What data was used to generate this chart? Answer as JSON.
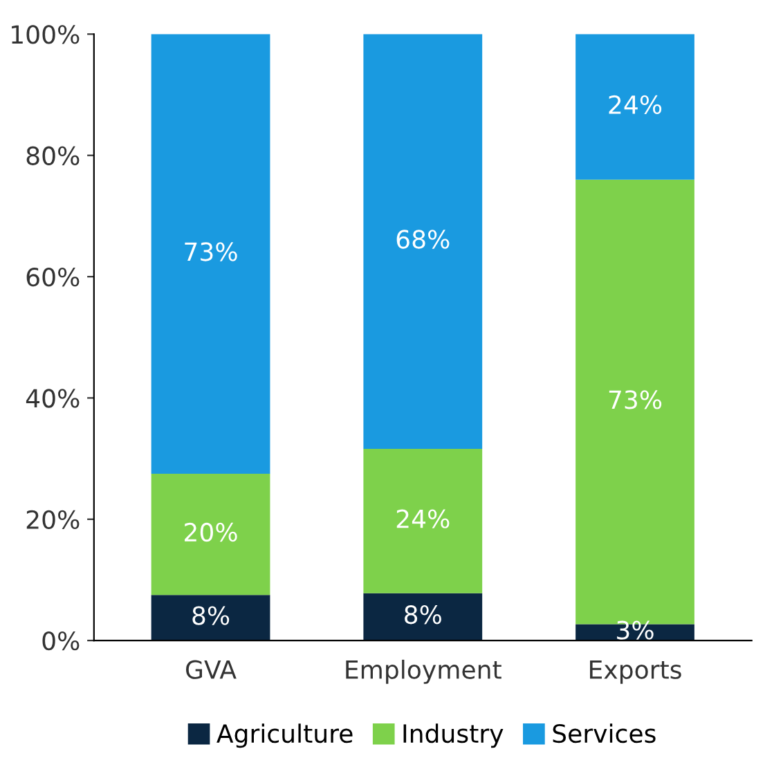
{
  "chart_data": {
    "type": "bar",
    "stacked": true,
    "categories": [
      "GVA",
      "Employment",
      "Exports"
    ],
    "series": [
      {
        "name": "Agriculture",
        "color": "#0b2742",
        "values": [
          7.5,
          7.8,
          2.7
        ],
        "value_labels": [
          "8%",
          "8%",
          "3%"
        ]
      },
      {
        "name": "Industry",
        "color": "#7ed14b",
        "values": [
          20,
          23.8,
          73.3
        ],
        "value_labels": [
          "20%",
          "24%",
          "73%"
        ]
      },
      {
        "name": "Services",
        "color": "#1a9ae0",
        "values": [
          72.5,
          68.4,
          24
        ],
        "value_labels": [
          "73%",
          "68%",
          "24%"
        ]
      }
    ],
    "ylim": [
      0,
      100
    ],
    "yticks": [
      {
        "value": 0,
        "label": "0%"
      },
      {
        "value": 20,
        "label": "20%"
      },
      {
        "value": 40,
        "label": "40%"
      },
      {
        "value": 60,
        "label": "60%"
      },
      {
        "value": 80,
        "label": "80%"
      },
      {
        "value": 100,
        "label": "100%"
      }
    ],
    "grid": false,
    "legend": "bottom"
  }
}
